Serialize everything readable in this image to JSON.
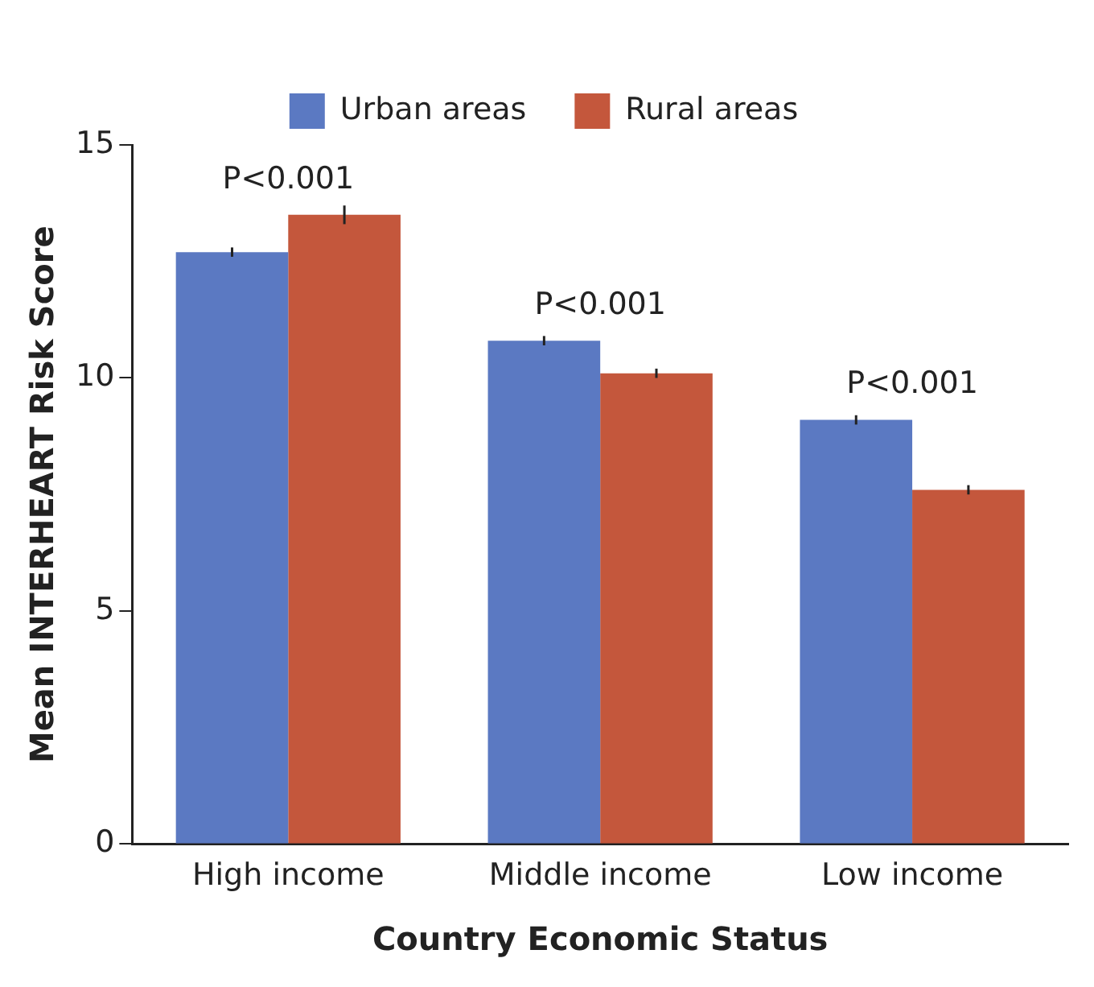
{
  "chart_data": {
    "type": "bar",
    "xlabel": "Country Economic Status",
    "ylabel": "Mean INTERHEART Risk Score",
    "categories": [
      "High income",
      "Middle income",
      "Low income"
    ],
    "series": [
      {
        "name": "Urban areas",
        "color": "#5b79c2",
        "values": [
          12.7,
          10.8,
          9.1
        ],
        "errors": [
          0.1,
          0.1,
          0.1
        ]
      },
      {
        "name": "Rural areas",
        "color": "#c4573c",
        "values": [
          13.5,
          10.1,
          7.6
        ],
        "errors": [
          0.2,
          0.1,
          0.1
        ]
      }
    ],
    "ylim": [
      0,
      15
    ],
    "yticks": [
      0,
      5,
      10,
      15
    ],
    "grid": false,
    "legend": "top",
    "annotations": [
      {
        "text": "P<0.001",
        "x": "High income",
        "y": 13.5
      },
      {
        "text": "P<0.001",
        "x": "Middle income",
        "y": 10.8
      },
      {
        "text": "P<0.001",
        "x": "Low income",
        "y": 9.1
      }
    ]
  }
}
